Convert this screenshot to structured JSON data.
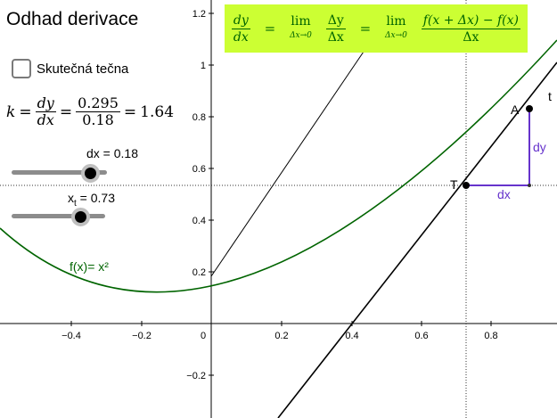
{
  "title": "Odhad derivace",
  "checkbox": {
    "label": "Skutečná tečna",
    "checked": false
  },
  "formula": {
    "k": "k",
    "dy": "dy",
    "dx": "dx",
    "num": "0.295",
    "den": "0.18",
    "result": "1.64"
  },
  "slider_dx": {
    "label": "dx = 0.18",
    "value": 0.18,
    "fill_fraction": 0.82
  },
  "slider_xt": {
    "label_main": "x",
    "label_sub": "t",
    "label_value": "= 0.73",
    "value": 0.73,
    "fill_fraction": 0.73
  },
  "function_label": "f(x)= x²",
  "banner": {
    "dy": "dy",
    "dx": "dx",
    "dY": "Δy",
    "dX": "Δx",
    "lim": "lim",
    "lim_sub": "Δx→0",
    "numerator": "f(x + Δx) − f(x)",
    "denominator": "Δx"
  },
  "points": {
    "T": "T",
    "A": "A",
    "t": "t",
    "dx": "dx",
    "dy": "dy"
  },
  "axes": {
    "x_ticks": [
      "−0.4",
      "−0.2",
      "0",
      "0.2",
      "0.4",
      "0.6",
      "0.8"
    ],
    "y_ticks": [
      "1.2",
      "1",
      "0.8",
      "0.6",
      "0.4",
      "0.2",
      "−0.2"
    ]
  },
  "colors": {
    "curve": "#006400",
    "banner": "#ccff33",
    "purple": "#6633cc",
    "axis": "#000000"
  }
}
